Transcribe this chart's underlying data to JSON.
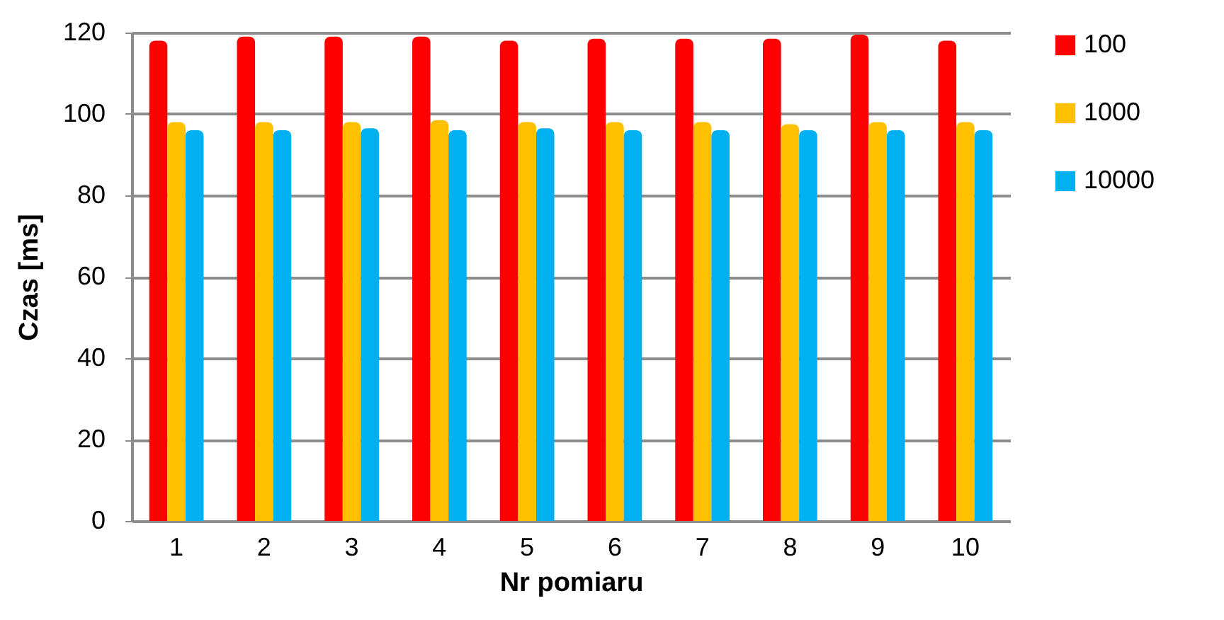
{
  "chart_data": {
    "type": "bar",
    "xlabel": "Nr pomiaru",
    "ylabel": "Czas [ms]",
    "categories": [
      "1",
      "2",
      "3",
      "4",
      "5",
      "6",
      "7",
      "8",
      "9",
      "10"
    ],
    "series": [
      {
        "name": "100",
        "color": "#ff0000",
        "values": [
          118,
          119,
          119,
          119,
          118,
          118.5,
          118.5,
          118.5,
          119.5,
          118
        ]
      },
      {
        "name": "1000",
        "color": "#ffc000",
        "values": [
          98,
          98,
          98,
          98.5,
          98,
          98,
          98,
          97.5,
          98,
          98
        ]
      },
      {
        "name": "10000",
        "color": "#00b0f0",
        "values": [
          96,
          96,
          96.5,
          96,
          96.5,
          96,
          96,
          96,
          96,
          96
        ]
      }
    ],
    "ylim": [
      0,
      120
    ],
    "yticks": [
      0,
      20,
      40,
      60,
      80,
      100,
      120
    ],
    "grid": "y",
    "legend": "right"
  }
}
